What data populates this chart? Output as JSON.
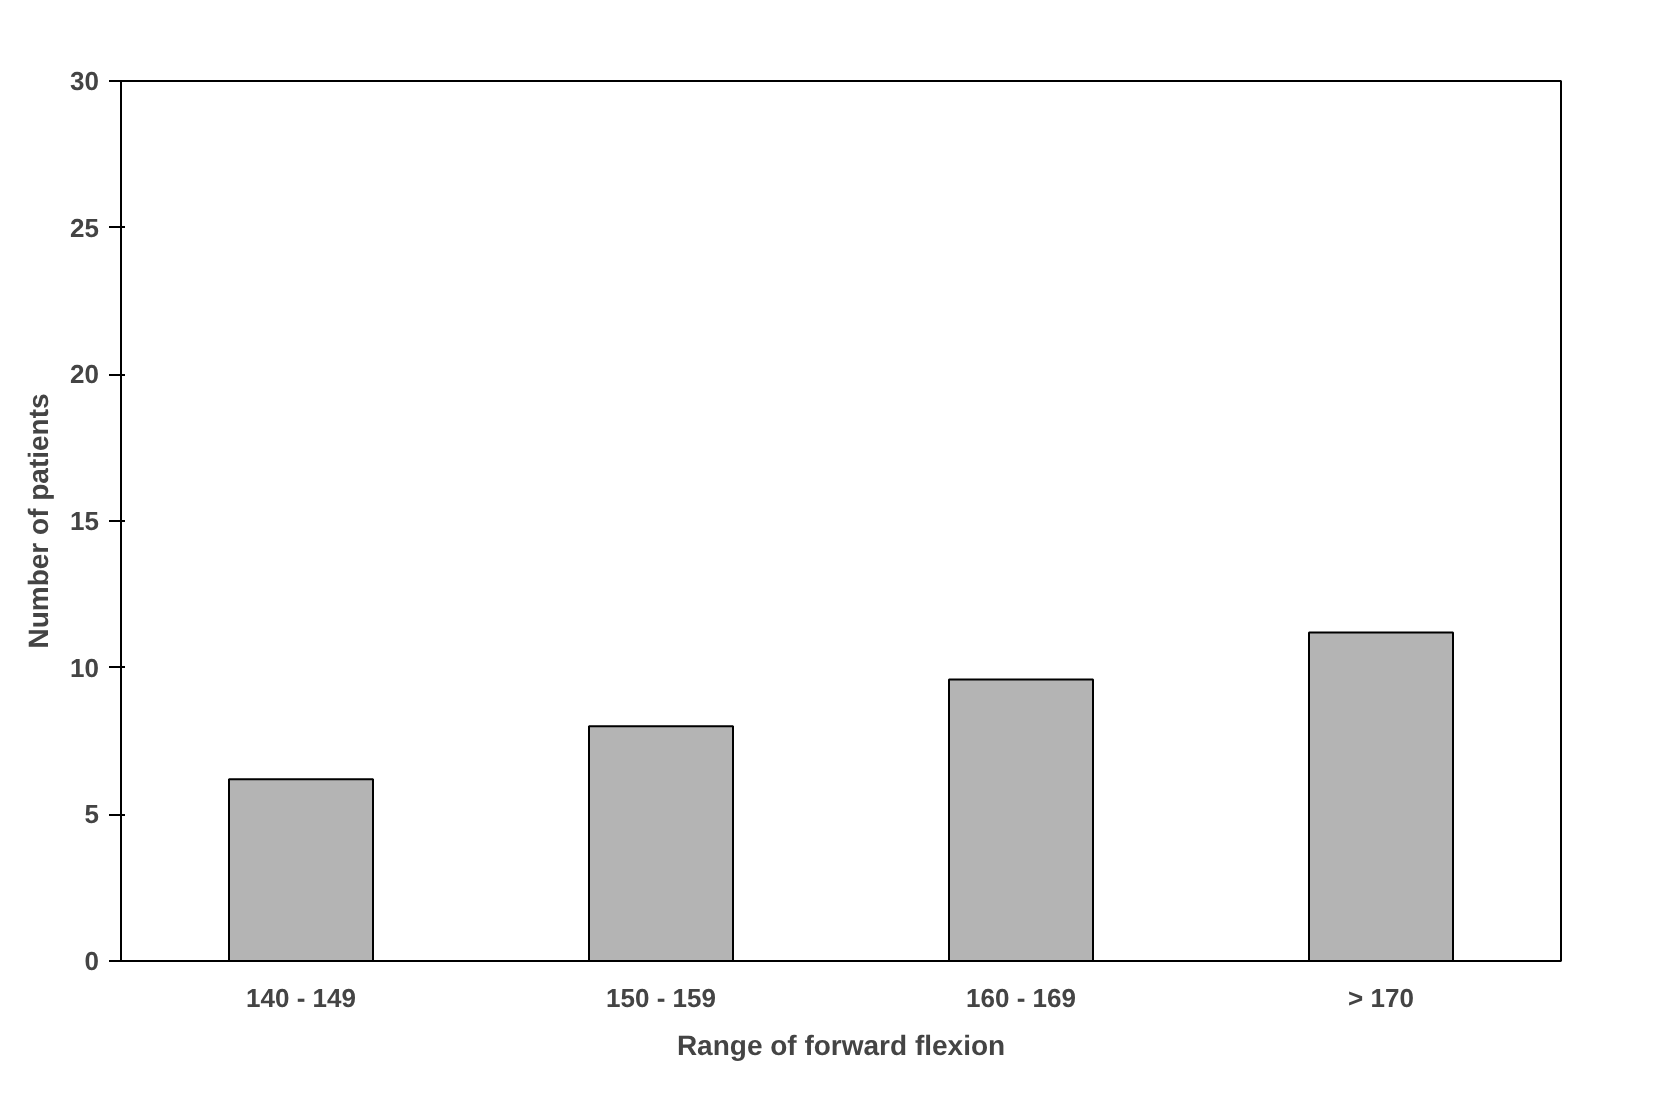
{
  "chart_data": {
    "type": "bar",
    "xlabel": "Range of forward flexion",
    "ylabel": "Number of patients",
    "categories": [
      "140 - 149",
      "150 - 159",
      "160 - 169",
      "> 170"
    ],
    "values": [
      6.2,
      8,
      9.6,
      11.2
    ],
    "color": "#b4b4b4",
    "ylim": [
      0,
      30
    ],
    "yticks": [
      0,
      5,
      10,
      15,
      20,
      25,
      30
    ],
    "grid": false
  }
}
